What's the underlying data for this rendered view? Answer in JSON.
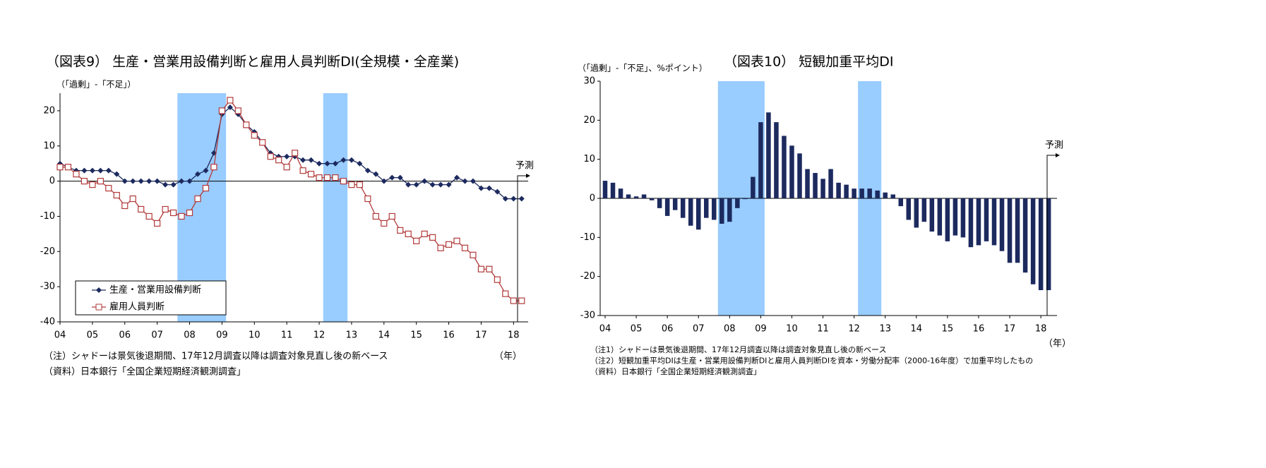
{
  "chart_data": [
    {
      "type": "line",
      "title": "（図表9） 生産・営業用設備判断と雇用人員判断DI(全規模・全産業)",
      "y_label": "（「過剰」-「不足」）",
      "categories": [
        "04",
        null,
        null,
        null,
        "05",
        null,
        null,
        null,
        "06",
        null,
        null,
        null,
        "07",
        null,
        null,
        null,
        "08",
        null,
        null,
        null,
        "09",
        null,
        null,
        null,
        "10",
        null,
        null,
        null,
        "11",
        null,
        null,
        null,
        "12",
        null,
        null,
        null,
        "13",
        null,
        null,
        null,
        "14",
        null,
        null,
        null,
        "15",
        null,
        null,
        null,
        "16",
        null,
        null,
        null,
        "17",
        null,
        null,
        null,
        "18",
        null
      ],
      "series": [
        {
          "name": "生産・営業用設備判断",
          "color": "#1c2a5e",
          "marker": "diamond",
          "values": [
            5,
            4,
            3,
            3,
            3,
            3,
            3,
            2,
            0,
            0,
            0,
            0,
            0,
            -1,
            -1,
            0,
            0,
            2,
            3,
            8,
            19,
            21,
            19,
            16,
            14,
            11,
            8,
            7,
            7,
            7,
            6,
            6,
            5,
            5,
            5,
            6,
            6,
            5,
            3,
            2,
            0,
            1,
            1,
            -1,
            -1,
            0,
            -1,
            -1,
            -1,
            1,
            0,
            0,
            -2,
            -2,
            -3,
            -5,
            -5,
            -5
          ]
        },
        {
          "name": "雇用人員判断",
          "color": "#b23a3a",
          "marker": "square",
          "values": [
            4,
            4,
            2,
            0,
            -1,
            0,
            -2,
            -4,
            -7,
            -5,
            -8,
            -10,
            -12,
            -8,
            -9,
            -10,
            -9,
            -5,
            -2,
            4,
            20,
            23,
            20,
            16,
            13,
            11,
            7,
            6,
            4,
            8,
            3,
            2,
            1,
            1,
            1,
            0,
            -1,
            -1,
            -5,
            -10,
            -12,
            -10,
            -14,
            -15,
            -17,
            -15,
            -16,
            -19,
            -18,
            -17,
            -19,
            -21,
            -25,
            -25,
            -28,
            -32,
            -34,
            -34
          ]
        }
      ],
      "ylim": [
        -40,
        25
      ],
      "yticks": [
        -40,
        -30,
        -20,
        -10,
        0,
        10,
        20
      ],
      "shaded_periods": [
        [
          14.5,
          20.5
        ],
        [
          32.5,
          35.5
        ]
      ],
      "shade_color": "#99ccff",
      "legend": "lower left",
      "forecast_label": "予測",
      "x_unit": "（年）",
      "notes": [
        "（注）シャドーは景気後退期間、17年12月調査以降は調査対象見直し後の新ベース",
        "（資料）日本銀行「全国企業短期経済観測調査」"
      ]
    },
    {
      "type": "bar",
      "title": "（図表10） 短観加重平均DI",
      "y_label": "（「過剰」-「不足」、%ポイント）",
      "categories": [
        "04",
        null,
        null,
        null,
        "05",
        null,
        null,
        null,
        "06",
        null,
        null,
        null,
        "07",
        null,
        null,
        null,
        "08",
        null,
        null,
        null,
        "09",
        null,
        null,
        null,
        "10",
        null,
        null,
        null,
        "11",
        null,
        null,
        null,
        "12",
        null,
        null,
        null,
        "13",
        null,
        null,
        null,
        "14",
        null,
        null,
        null,
        "15",
        null,
        null,
        null,
        "16",
        null,
        null,
        null,
        "17",
        null,
        null,
        null,
        "18",
        null
      ],
      "values": [
        4.5,
        4,
        2.5,
        1,
        0.5,
        1,
        -0.5,
        -2.5,
        -4.5,
        -3,
        -5,
        -7,
        -8,
        -5,
        -5.5,
        -6.5,
        -6,
        -2.5,
        -0.2,
        5.5,
        19.5,
        22,
        19.5,
        16,
        13.5,
        11.5,
        7.5,
        6.5,
        5,
        7.5,
        4,
        3.5,
        2.5,
        2.5,
        2.5,
        2,
        1.5,
        1,
        -2,
        -5.5,
        -7.5,
        -6,
        -8.5,
        -9.5,
        -11,
        -9.5,
        -10,
        -12.5,
        -12,
        -11,
        -12,
        -13.5,
        -16.5,
        -16.5,
        -19,
        -22,
        -23.5,
        -23.5
      ],
      "color": "#1c2a5e",
      "ylim": [
        -30,
        30
      ],
      "yticks": [
        -30,
        -20,
        -10,
        0,
        10,
        20,
        30
      ],
      "shaded_periods": [
        [
          14.5,
          20.5
        ],
        [
          32.5,
          35.5
        ]
      ],
      "shade_color": "#99ccff",
      "forecast_label": "予測",
      "x_unit": "（年）",
      "notes": [
        "（注1）シャドーは景気後退期間、17年12月調査以降は調査対象見直し後の新ベース",
        "（注2）短観加重平均DIは生産・営業用設備判断DIと雇用人員判断DIを資本・労働分配率（2000-16年度）で加重平均したもの",
        "（資料）日本銀行「全国企業短期経済観測調査」"
      ]
    }
  ]
}
